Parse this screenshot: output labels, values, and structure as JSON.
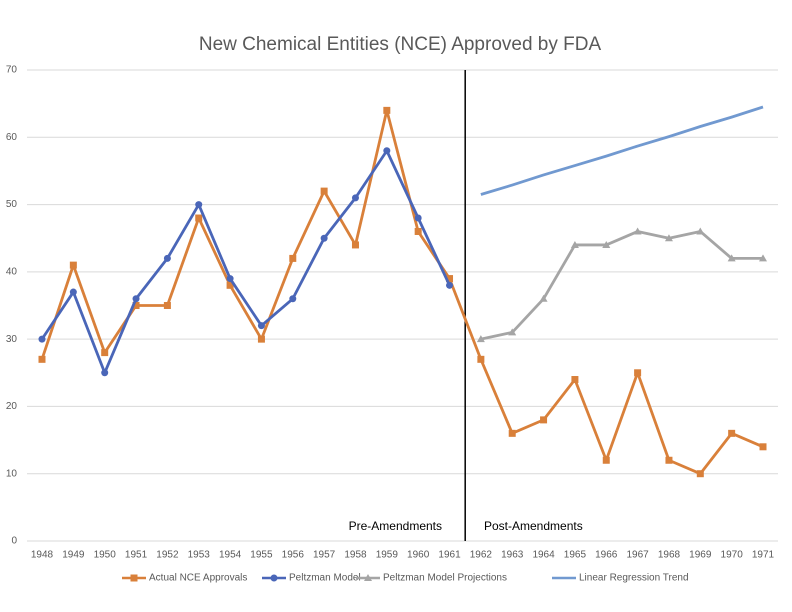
{
  "chart_data": {
    "type": "line",
    "title": "New Chemical Entities (NCE) Approved by FDA",
    "categories": [
      "1948",
      "1949",
      "1950",
      "1951",
      "1952",
      "1953",
      "1954",
      "1955",
      "1956",
      "1957",
      "1958",
      "1959",
      "1960",
      "1961",
      "1962",
      "1963",
      "1964",
      "1965",
      "1966",
      "1967",
      "1968",
      "1969",
      "1970",
      "1971"
    ],
    "series": [
      {
        "name": "Actual NCE Approvals",
        "color": "#d9803a",
        "marker": "square",
        "values": [
          27,
          41,
          28,
          35,
          35,
          48,
          38,
          30,
          42,
          52,
          44,
          64,
          46,
          39,
          27,
          16,
          18,
          24,
          12,
          25,
          12,
          10,
          16,
          14
        ]
      },
      {
        "name": "Peltzman Model",
        "color": "#4a66b8",
        "marker": "circle",
        "values": [
          30,
          37,
          25,
          36,
          42,
          50,
          39,
          32,
          36,
          45,
          51,
          58,
          48,
          38,
          null,
          null,
          null,
          null,
          null,
          null,
          null,
          null,
          null,
          null
        ]
      },
      {
        "name": "Peltzman Model Projections",
        "color": "#a5a5a5",
        "marker": "triangle",
        "values": [
          null,
          null,
          null,
          null,
          null,
          null,
          null,
          null,
          null,
          null,
          null,
          null,
          null,
          null,
          30,
          31,
          36,
          44,
          44,
          46,
          45,
          46,
          42,
          42
        ]
      },
      {
        "name": "Linear Regression Trend",
        "color": "#7199d0",
        "marker": "none",
        "values": [
          null,
          null,
          null,
          null,
          null,
          null,
          null,
          null,
          null,
          null,
          null,
          null,
          null,
          null,
          51.5,
          52.9,
          54.4,
          55.8,
          57.2,
          58.7,
          60.1,
          61.6,
          63.0,
          64.5
        ]
      }
    ],
    "annotations": [
      "Pre-Amendments",
      "Post-Amendments"
    ],
    "ylim": [
      0,
      70
    ],
    "yticks": [
      0,
      10,
      20,
      30,
      40,
      50,
      60,
      70
    ],
    "grid": true,
    "legend": "bottom"
  }
}
